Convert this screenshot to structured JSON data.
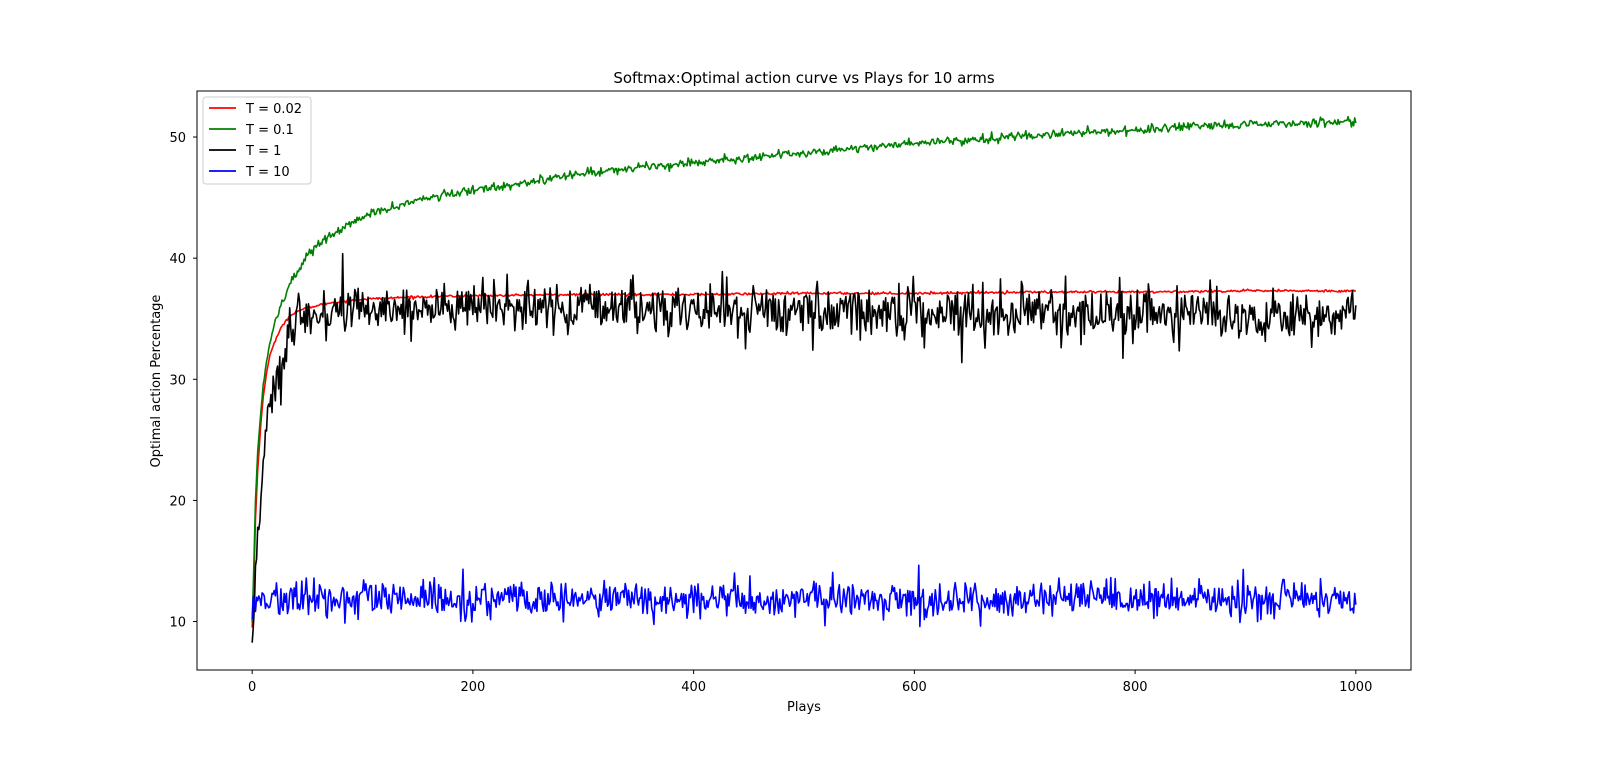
{
  "chart_data": {
    "type": "line",
    "title": "Softmax:Optimal action curve vs Plays for 10 arms",
    "xlabel": "Plays",
    "ylabel": "Optimal action Percentage",
    "xlim": [
      -50,
      1050
    ],
    "ylim": [
      6.0,
      53.8
    ],
    "xticks": [
      0,
      200,
      400,
      600,
      800,
      1000
    ],
    "yticks": [
      10,
      20,
      30,
      40,
      50
    ],
    "grid": false,
    "legend_position": "top-left",
    "series": [
      {
        "name": "T = 0.02",
        "color": "#ff0000",
        "style": "smooth",
        "x": [
          0,
          1,
          2,
          3,
          5,
          8,
          10,
          13,
          16,
          20,
          25,
          30,
          35,
          40,
          50,
          60,
          70,
          80,
          100,
          120,
          150,
          200,
          300,
          400,
          500,
          600,
          700,
          800,
          900,
          1000
        ],
        "values": [
          9.5,
          12.0,
          15.0,
          18.5,
          22.5,
          26.5,
          28.5,
          30.5,
          32.0,
          33.0,
          34.0,
          34.8,
          35.3,
          35.6,
          35.9,
          36.1,
          36.3,
          36.4,
          36.6,
          36.7,
          36.8,
          36.9,
          37.0,
          37.0,
          37.1,
          37.1,
          37.2,
          37.2,
          37.3,
          37.3
        ],
        "noise": 0.05
      },
      {
        "name": "T = 0.1",
        "color": "#008000",
        "style": "smooth",
        "x": [
          0,
          1,
          2,
          3,
          5,
          8,
          10,
          13,
          16,
          20,
          25,
          30,
          35,
          40,
          50,
          60,
          70,
          80,
          100,
          120,
          150,
          200,
          250,
          300,
          350,
          400,
          450,
          500,
          600,
          700,
          800,
          900,
          1000
        ],
        "values": [
          10.0,
          13.0,
          16.5,
          20.0,
          24.0,
          27.5,
          29.5,
          31.5,
          33.0,
          34.5,
          35.8,
          37.0,
          38.0,
          38.8,
          40.2,
          41.2,
          41.8,
          42.3,
          43.4,
          44.0,
          44.8,
          45.6,
          46.3,
          47.0,
          47.5,
          47.9,
          48.3,
          48.7,
          49.5,
          50.1,
          50.6,
          51.0,
          51.3
        ],
        "noise": 0.18
      },
      {
        "name": "T = 1",
        "color": "#000000",
        "style": "noisy",
        "x": [
          0,
          1,
          3,
          5,
          7,
          9,
          11,
          13,
          15,
          18,
          21,
          24,
          27,
          30,
          33,
          36,
          40,
          45,
          50,
          55,
          60,
          70,
          80,
          100,
          130,
          160,
          200,
          300,
          400,
          500,
          600,
          700,
          800,
          900,
          1000
        ],
        "values": [
          8.2,
          10.5,
          14.0,
          17.5,
          18.3,
          21.5,
          24.5,
          25.2,
          28.0,
          29.0,
          28.8,
          30.5,
          31.5,
          32.0,
          33.0,
          33.5,
          34.2,
          34.8,
          35.0,
          35.2,
          35.4,
          35.6,
          35.7,
          35.8,
          35.9,
          35.9,
          35.9,
          35.9,
          35.8,
          35.6,
          35.6,
          35.5,
          35.4,
          35.3,
          35.3
        ],
        "noise_start": 0.6,
        "noise": 1.05
      },
      {
        "name": "T = 10",
        "color": "#0000ff",
        "style": "noisy",
        "x": [
          0,
          1000
        ],
        "values": [
          11.8,
          11.8
        ],
        "start_value": 10.2,
        "noise": 0.75
      }
    ]
  }
}
